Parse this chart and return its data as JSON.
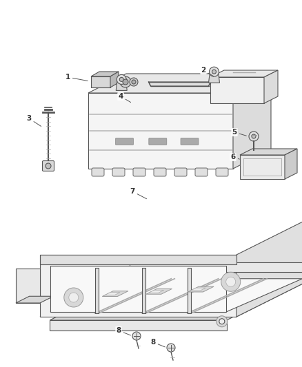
{
  "background_color": "#ffffff",
  "figsize": [
    4.38,
    5.33
  ],
  "dpi": 100,
  "line_color": "#555555",
  "label_color": "#333333",
  "fill_light": "#f0f0f0",
  "fill_mid": "#e0e0e0",
  "fill_dark": "#c8c8c8",
  "lw": 0.8
}
